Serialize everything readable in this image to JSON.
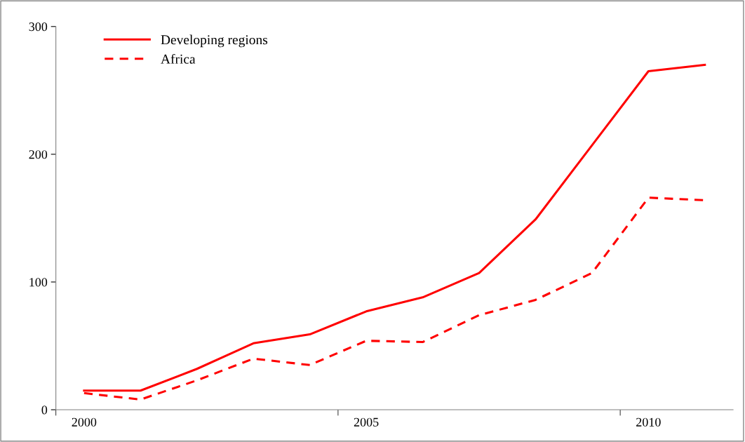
{
  "chart_data": {
    "type": "line",
    "categories": [
      "2000",
      null,
      null,
      null,
      null,
      "2005",
      null,
      null,
      null,
      null,
      "2010",
      null
    ],
    "series": [
      {
        "name": "Developing regions",
        "color": "#ff0000",
        "line_style": "solid",
        "values": [
          15,
          15,
          32,
          52,
          59,
          77,
          88,
          107,
          149,
          207,
          265,
          270
        ]
      },
      {
        "name": "Africa",
        "color": "#ff0000",
        "line_style": "dashed",
        "values": [
          13,
          8,
          23,
          40,
          35,
          54,
          53,
          74,
          86,
          107,
          166,
          164
        ]
      }
    ],
    "ylim": [
      0,
      300
    ],
    "yticks": [
      0,
      100,
      200,
      300
    ],
    "grid": false,
    "legend": "top left",
    "marker": "none"
  }
}
